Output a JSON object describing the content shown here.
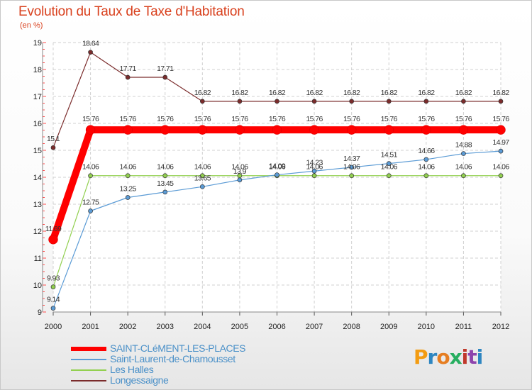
{
  "title": "Evolution du Taux de Taxe d'Habitation",
  "subtitle": "(en %)",
  "logo": {
    "letters": [
      "P",
      "r",
      "o",
      "x",
      "i",
      "t",
      "i"
    ],
    "colors": [
      "#f39c12",
      "#2e86c1",
      "#e67e22",
      "#27ae60",
      "#c0392b",
      "#8e44ad",
      "#2e86c1"
    ]
  },
  "chart_data": {
    "type": "line",
    "x": [
      "2000",
      "2001",
      "2002",
      "2003",
      "2004",
      "2005",
      "2006",
      "2007",
      "2008",
      "2009",
      "2010",
      "2011",
      "2012"
    ],
    "ylim": [
      9,
      19
    ],
    "yticks": [
      "9",
      "10",
      "11",
      "12",
      "13",
      "14",
      "15",
      "16",
      "17",
      "18",
      "19"
    ],
    "grid": true,
    "legend_position": "bottom-left",
    "series": [
      {
        "name": "SAINT-CLéMENT-LES-PLACES",
        "color": "#ff0000",
        "values": [
          11.69,
          15.76,
          15.76,
          15.76,
          15.76,
          15.76,
          15.76,
          15.76,
          15.76,
          15.76,
          15.76,
          15.76,
          15.76
        ],
        "labels": [
          "11.69",
          "15.76",
          "15.76",
          "15.76",
          "15.76",
          "15.76",
          "15.76",
          "15.76",
          "15.76",
          "15.76",
          "15.76",
          "15.76",
          "15.76"
        ]
      },
      {
        "name": "Saint-Laurent-de-Chamousset",
        "color": "#5b9bd5",
        "values": [
          9.14,
          12.75,
          13.25,
          13.45,
          13.65,
          13.9,
          14.09,
          14.23,
          14.37,
          14.51,
          14.66,
          14.88,
          14.97
        ],
        "labels": [
          "9.14",
          "12.75",
          "13.25",
          "13.45",
          "13.65",
          "13.9",
          "14.09",
          "14.23",
          "14.37",
          "14.51",
          "14.66",
          "14.88",
          "14.97"
        ]
      },
      {
        "name": "Les Halles",
        "color": "#92d050",
        "values": [
          9.93,
          14.06,
          14.06,
          14.06,
          14.06,
          14.06,
          14.06,
          14.06,
          14.06,
          14.06,
          14.06,
          14.06,
          14.06
        ],
        "labels": [
          "9.93",
          "14.06",
          "14.06",
          "14.06",
          "14.06",
          "14.06",
          "14.06",
          "14.06",
          "14.06",
          "14.06",
          "14.06",
          "14.06",
          "14.06"
        ]
      },
      {
        "name": "Longessaigne",
        "color": "#7b2c2c",
        "values": [
          15.1,
          18.64,
          17.71,
          17.71,
          16.82,
          16.82,
          16.82,
          16.82,
          16.82,
          16.82,
          16.82,
          16.82,
          16.82
        ],
        "labels": [
          "15.1",
          "18.64",
          "17.71",
          "17.71",
          "16.82",
          "16.82",
          "16.82",
          "16.82",
          "16.82",
          "16.82",
          "16.82",
          "16.82",
          "16.82"
        ]
      }
    ]
  }
}
